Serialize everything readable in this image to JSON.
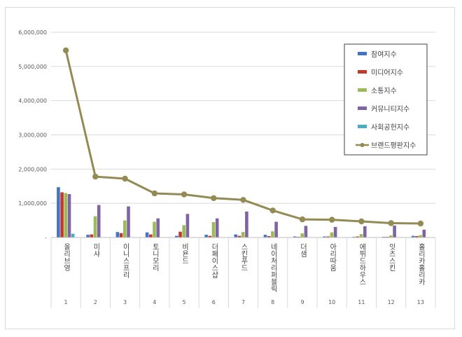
{
  "chart_data": {
    "type": "bar",
    "ylim": [
      0,
      6000000
    ],
    "yticks": [
      "-",
      "1,000,000",
      "2,000,000",
      "3,000,000",
      "4,000,000",
      "5,000,000",
      "6,000,000"
    ],
    "grid": true,
    "legend_position": "top-right",
    "categories": [
      "올리브영",
      "미샤",
      "이니스프리",
      "토니모리",
      "비욘드",
      "더페이스샵",
      "스킨푸드",
      "네이처리퍼블릭",
      "더샘",
      "아리따움",
      "에뛰드하우스",
      "잇츠스킨",
      "홀리카홀리카"
    ],
    "ranks": [
      "1",
      "2",
      "3",
      "4",
      "5",
      "6",
      "7",
      "8",
      "9",
      "10",
      "11",
      "12",
      "13"
    ],
    "series": [
      {
        "name": "참여지수",
        "color": "#4472c4",
        "kind": "bar",
        "values": [
          1470000,
          80000,
          160000,
          150000,
          50000,
          80000,
          90000,
          80000,
          30000,
          30000,
          20000,
          20000,
          50000
        ]
      },
      {
        "name": "미디어지수",
        "color": "#c0392b",
        "kind": "bar",
        "values": [
          1320000,
          90000,
          130000,
          90000,
          170000,
          50000,
          50000,
          40000,
          20000,
          30000,
          30000,
          20000,
          40000
        ]
      },
      {
        "name": "소통지수",
        "color": "#9bbb59",
        "kind": "bar",
        "values": [
          1300000,
          620000,
          500000,
          460000,
          360000,
          450000,
          160000,
          180000,
          120000,
          150000,
          100000,
          60000,
          70000
        ]
      },
      {
        "name": "커뮤니티지수",
        "color": "#8064a2",
        "kind": "bar",
        "values": [
          1270000,
          950000,
          910000,
          560000,
          690000,
          560000,
          760000,
          460000,
          340000,
          310000,
          330000,
          350000,
          230000
        ]
      },
      {
        "name": "사회공헌지수",
        "color": "#4bacc6",
        "kind": "bar",
        "values": [
          110000,
          10000,
          10000,
          10000,
          10000,
          10000,
          10000,
          10000,
          10000,
          10000,
          10000,
          10000,
          10000
        ]
      },
      {
        "name": "브랜드평판지수",
        "color": "#948a54",
        "kind": "line",
        "values": [
          5470000,
          1780000,
          1720000,
          1290000,
          1260000,
          1150000,
          1100000,
          790000,
          530000,
          520000,
          470000,
          420000,
          410000
        ]
      }
    ]
  }
}
